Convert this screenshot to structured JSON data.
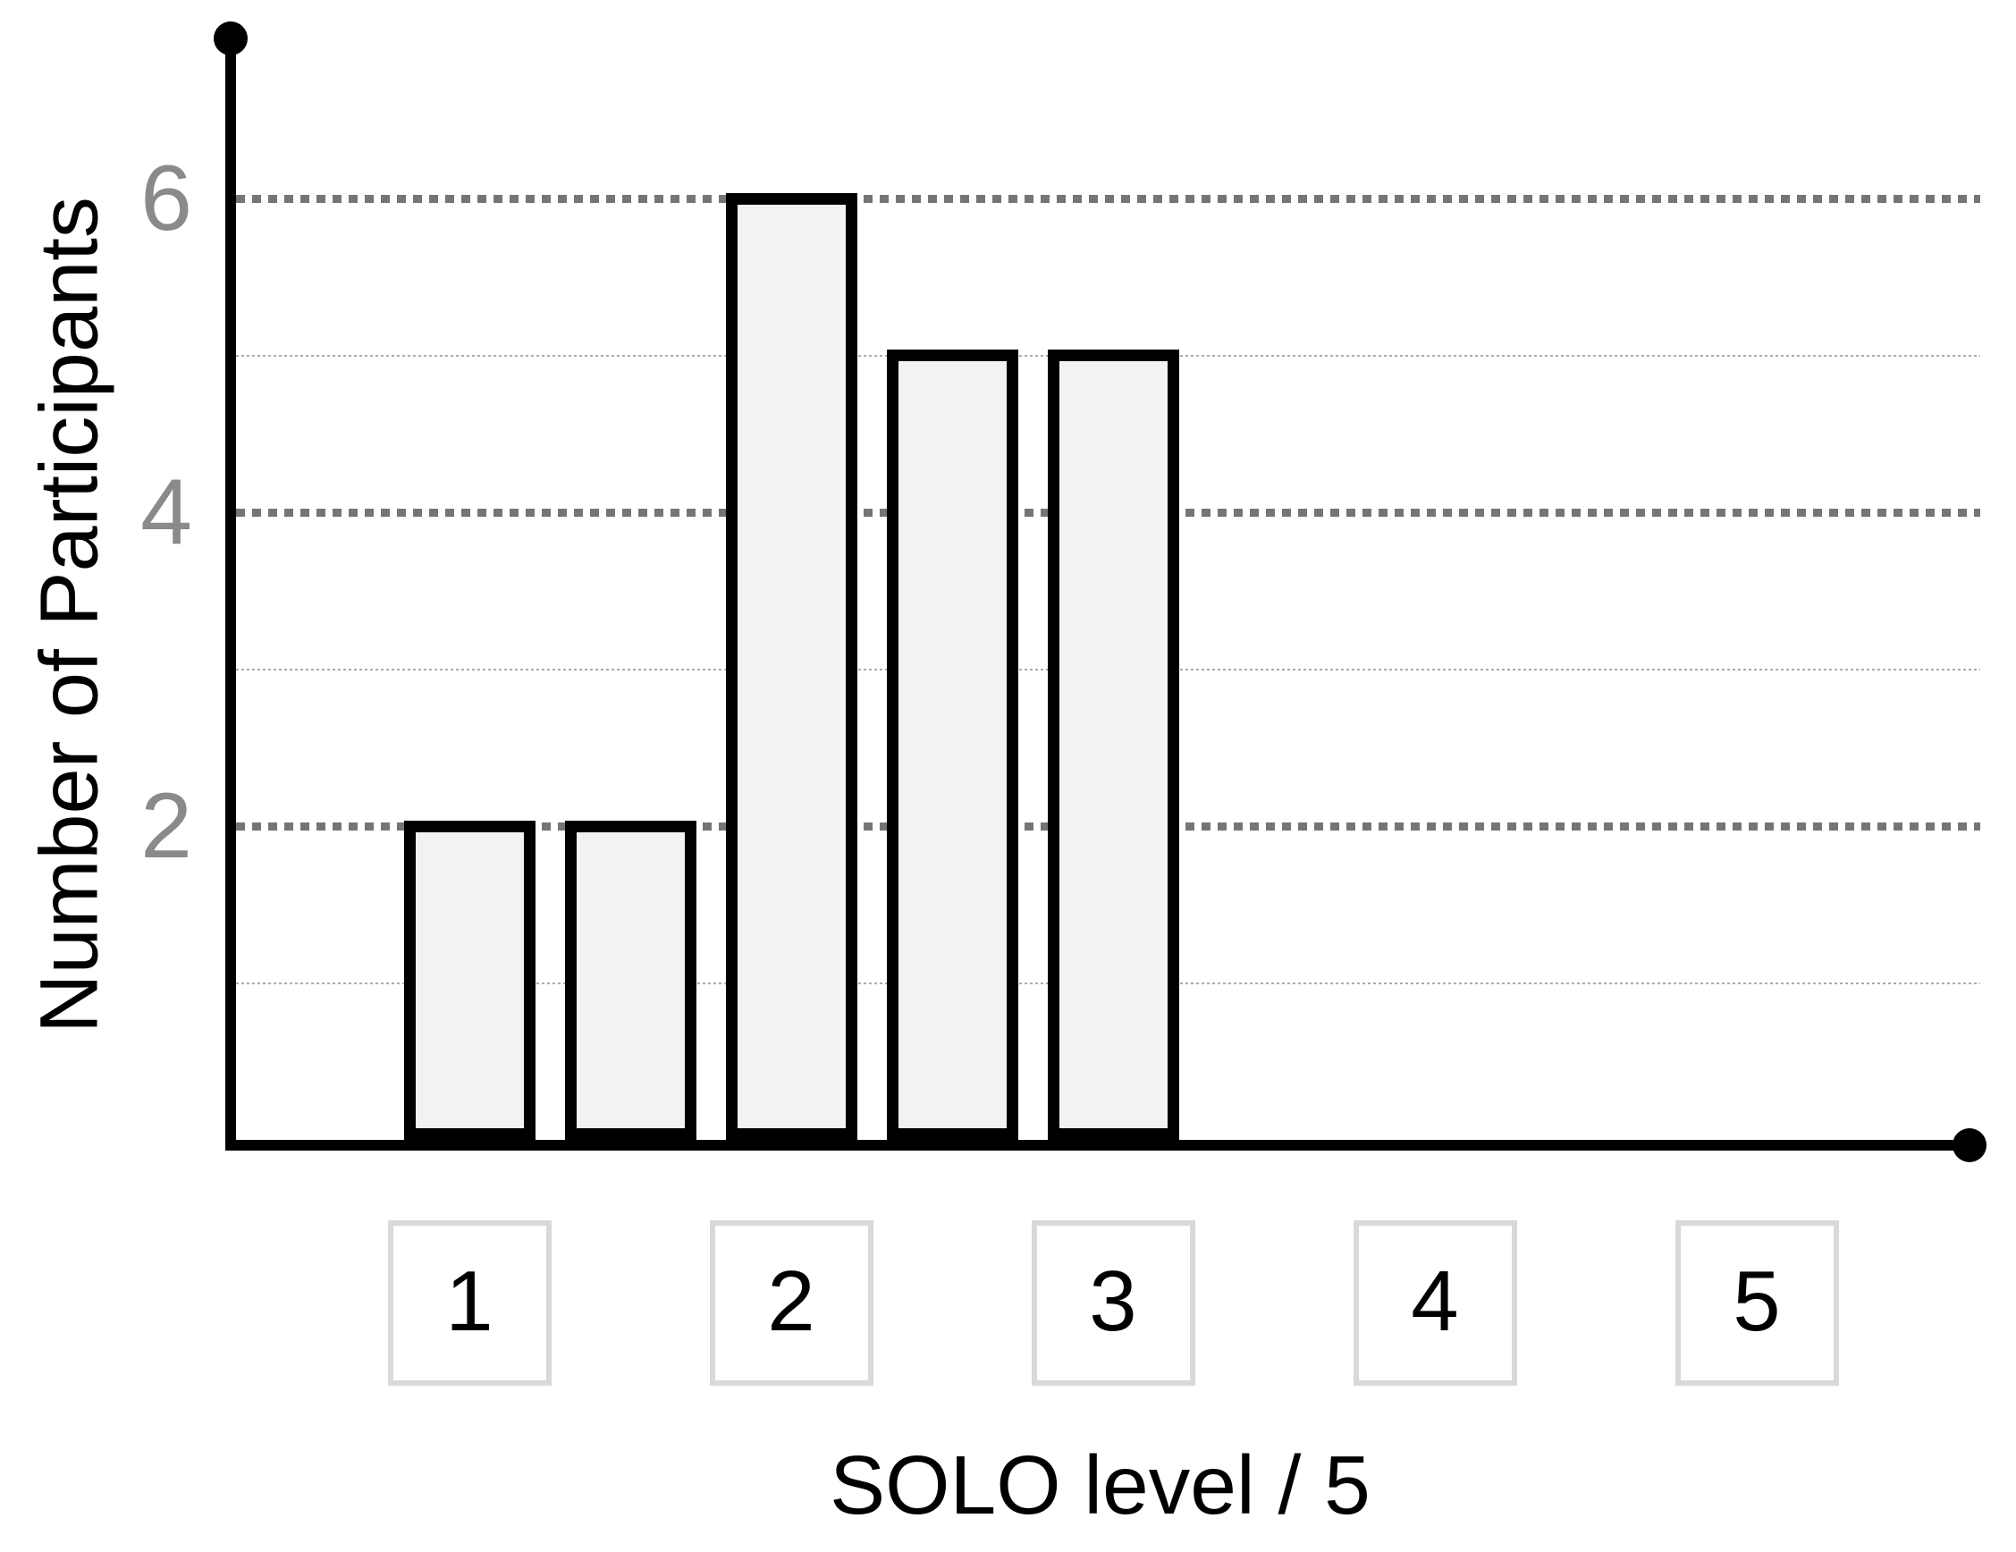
{
  "chart_data": {
    "type": "bar",
    "title": "",
    "xlabel": "SOLO level / 5",
    "ylabel": "Number of Participants",
    "bars": [
      {
        "x": 1,
        "value": 2
      },
      {
        "x": 1.5,
        "value": 2
      },
      {
        "x": 2,
        "value": 6
      },
      {
        "x": 2.5,
        "value": 5
      },
      {
        "x": 3,
        "value": 5
      }
    ],
    "categories": [
      "1",
      "2",
      "3",
      "4",
      "5"
    ],
    "yticks_major": [
      2,
      4,
      6
    ],
    "yticks_minor": [
      1,
      3,
      5
    ],
    "ylim": [
      0,
      7
    ],
    "grid": "horizontal, dotted major at 2/4/6, faint dotted minor at 1/3/5",
    "legend": "none",
    "colors": {
      "bar_fill": "#f2f2f2",
      "bar_border": "#000000",
      "axis": "#000000",
      "major_gridline": "#757575",
      "minor_gridline": "#ababab",
      "tick_label": "#8a8a8a",
      "category_box_border": "#d9d9d9",
      "title_text": "#000000"
    }
  }
}
